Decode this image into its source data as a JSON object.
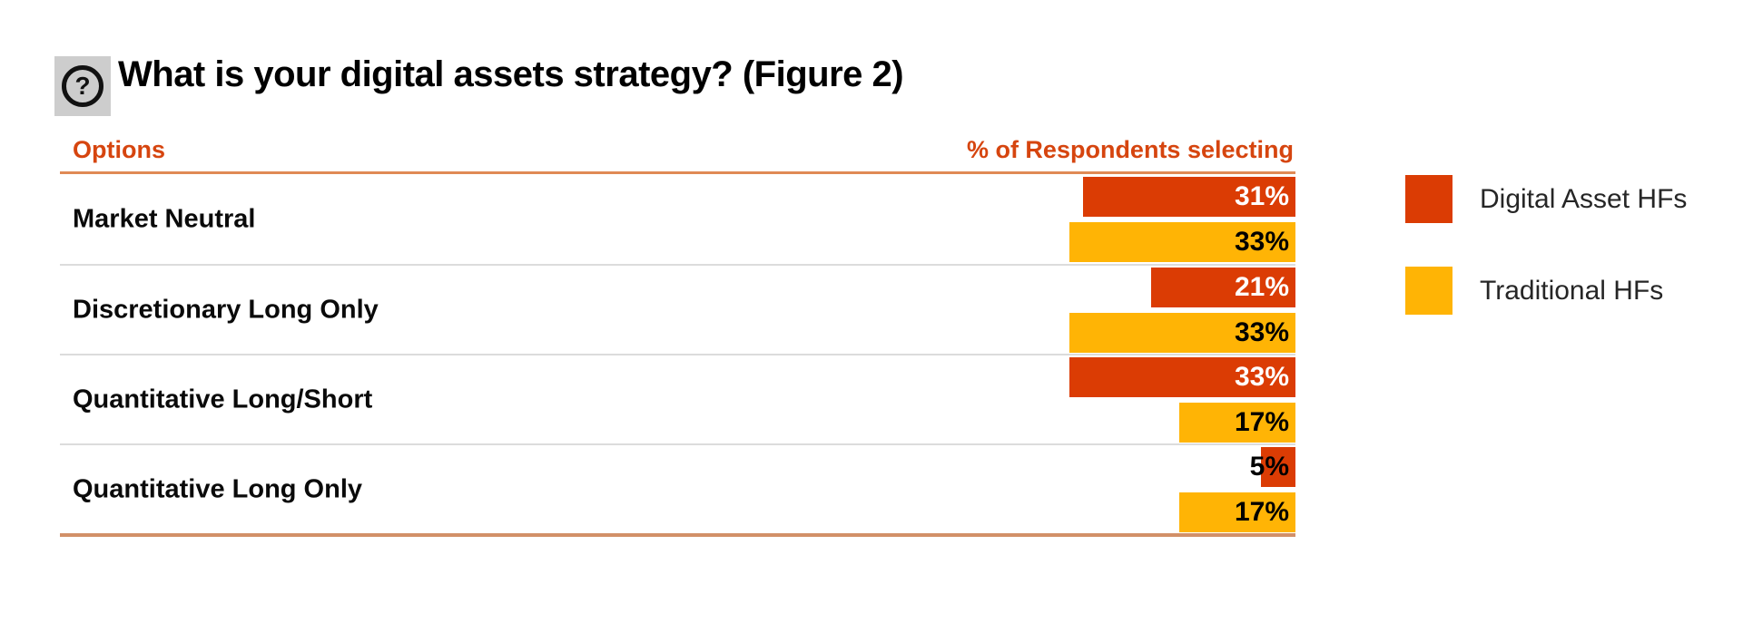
{
  "title": {
    "text": "What is your digital assets strategy? (Figure 2)",
    "icon": "question-mark"
  },
  "table": {
    "col_left": "Options",
    "col_right": "% of Respondents selecting"
  },
  "colors": {
    "digital_asset_hfs": "#DB3C04",
    "traditional_hfs": "#FFB405",
    "header_text": "#D6450F",
    "header_rule": "#E08A55",
    "bottom_rule": "#D29068",
    "row_divider": "#DCDCDC"
  },
  "chart_data": {
    "type": "bar",
    "orientation": "horizontal",
    "title": "What is your digital assets strategy? (Figure 2)",
    "categories": [
      "Market Neutral",
      "Discretionary Long Only",
      "Quantitative Long/Short",
      "Quantitative Long Only"
    ],
    "series": [
      {
        "name": "Digital Asset HFs",
        "color": "#DB3C04",
        "values": [
          31,
          21,
          33,
          5
        ]
      },
      {
        "name": "Traditional HFs",
        "color": "#FFB405",
        "values": [
          33,
          33,
          17,
          17
        ]
      }
    ],
    "unit": "%",
    "value_labels": true,
    "xlim": [
      0,
      33
    ],
    "grid": false,
    "legend_position": "right"
  }
}
